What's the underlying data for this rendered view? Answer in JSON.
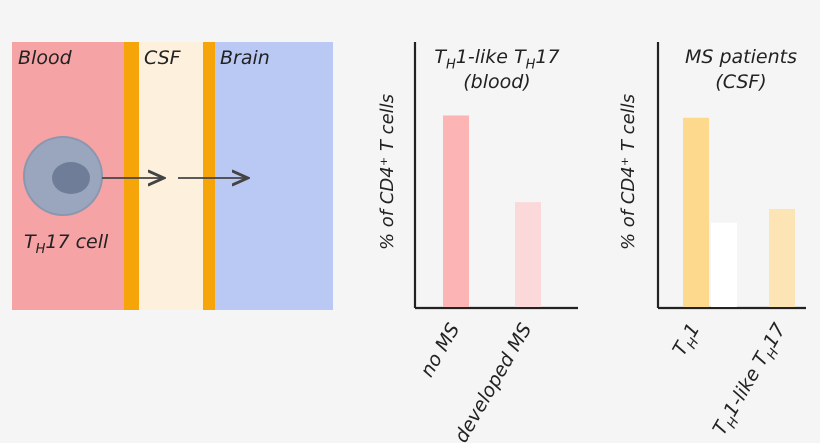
{
  "diagram": {
    "compartments": {
      "blood": "Blood",
      "csf": "CSF",
      "brain": "Brain"
    },
    "cell_label": {
      "main": "T",
      "sub": "H",
      "rest": "17 cell"
    },
    "colors": {
      "blood": "#f6a3a6",
      "csf": "#fdf1dd",
      "brain": "#bac8f4",
      "barrier": "#f5a40a",
      "cell_outer": "#9aa6bd",
      "cell_nucleus": "#6f7d99",
      "arrow": "#444444"
    }
  },
  "chart_data": [
    {
      "type": "bar",
      "title_lines": [
        [
          {
            "t": "T"
          },
          {
            "t": "H",
            "sub": true
          },
          {
            "t": "1-like T"
          },
          {
            "t": "H",
            "sub": true
          },
          {
            "t": "17"
          }
        ],
        [
          {
            "t": "(blood)"
          }
        ]
      ],
      "ylabel": "% of CD4⁺ T cells",
      "categories": [
        [
          {
            "t": "no MS"
          }
        ],
        [
          {
            "t": "developed MS"
          }
        ]
      ],
      "values": [
        0.84,
        0.46
      ],
      "colors": [
        "#fdb4b5",
        "#fbd9da"
      ],
      "ylim": [
        0,
        1
      ]
    },
    {
      "type": "bar",
      "title_lines": [
        [
          {
            "t": "MS patients"
          }
        ],
        [
          {
            "t": "(CSF)"
          }
        ]
      ],
      "ylabel": "% of CD4⁺ T cells",
      "categories": [
        [
          {
            "t": "T"
          },
          {
            "t": "H",
            "sub": true
          },
          {
            "t": "1"
          }
        ],
        [],
        [
          {
            "t": "T"
          },
          {
            "t": "H",
            "sub": true
          },
          {
            "t": "1-like T"
          },
          {
            "t": "H",
            "sub": true
          },
          {
            "t": "17"
          }
        ]
      ],
      "values": [
        0.83,
        0.37,
        0.43
      ],
      "colors": [
        "#fdd98e",
        "#ffffff",
        "#fde4b5"
      ],
      "ylim": [
        0,
        1
      ]
    }
  ]
}
